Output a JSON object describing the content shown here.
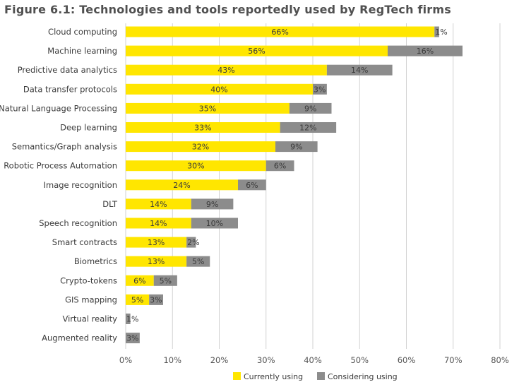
{
  "chart_data": {
    "type": "bar",
    "orientation": "horizontal",
    "stacked": true,
    "title": "Figure 6.1: Technologies and tools reportedly used by RegTech firms",
    "categories": [
      "Cloud computing",
      "Machine learning",
      "Predictive data analytics",
      "Data transfer protocols",
      "Natural Language Processing",
      "Deep learning",
      "Semantics/Graph analysis",
      "Robotic Process Automation",
      "Image recognition",
      "DLT",
      "Speech recognition",
      "Smart contracts",
      "Biometrics",
      "Crypto-tokens",
      "GIS mapping",
      "Virtual reality",
      "Augmented reality"
    ],
    "series": [
      {
        "name": "Currently using",
        "color": "#FFE600",
        "values": [
          66,
          56,
          43,
          40,
          35,
          33,
          32,
          30,
          24,
          14,
          14,
          13,
          13,
          6,
          5,
          0,
          0
        ],
        "labels": [
          "66%",
          "56%",
          "43%",
          "40%",
          "35%",
          "33%",
          "32%",
          "30%",
          "24%",
          "14%",
          "14%",
          "13%",
          "13%",
          "6%",
          "5%",
          "",
          ""
        ]
      },
      {
        "name": "Considering using",
        "color": "#8C8C8C",
        "values": [
          1,
          16,
          14,
          3,
          9,
          12,
          9,
          6,
          6,
          9,
          10,
          2,
          5,
          5,
          3,
          1,
          3
        ],
        "labels": [
          "1%",
          "16%",
          "14%",
          "3%",
          "9%",
          "12%",
          "9%",
          "6%",
          "6%",
          "9%",
          "10%",
          "2%",
          "5%",
          "5%",
          "3%",
          "1%",
          "3%"
        ]
      }
    ],
    "xlim": [
      0,
      80
    ],
    "xticks": [
      0,
      10,
      20,
      30,
      40,
      50,
      60,
      70,
      80
    ],
    "xtick_labels": [
      "0%",
      "10%",
      "20%",
      "30%",
      "40%",
      "50%",
      "60%",
      "70%",
      "80%"
    ],
    "grid": true,
    "legend": "bottom"
  }
}
